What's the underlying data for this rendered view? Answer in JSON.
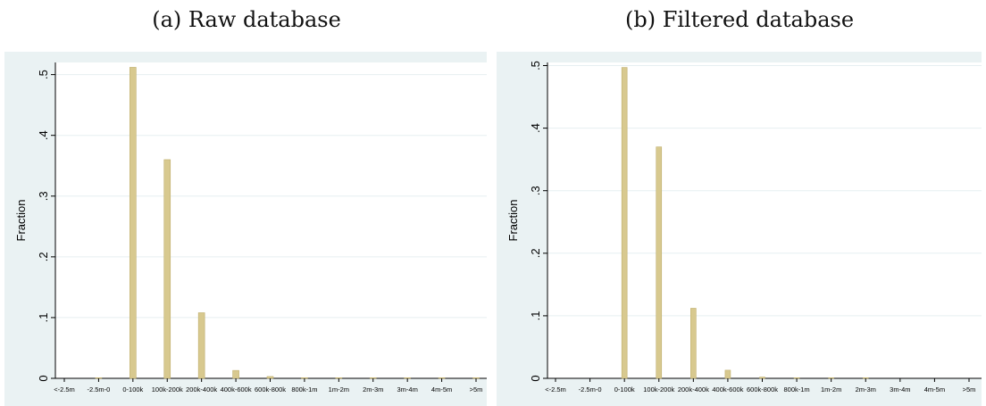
{
  "captions": {
    "a": "(a) Raw database",
    "b": "(b) Filtered database"
  },
  "colors": {
    "frame_bg": "#eaf2f3",
    "plot_bg": "#ffffff",
    "bar": "#d8c98f",
    "bar_edge": "#bfae6c",
    "grid": "#e6eff1"
  },
  "chart_data": [
    {
      "type": "bar",
      "title": "(a) Raw database",
      "xlabel": "",
      "ylabel": "Fraction",
      "ylim": [
        0,
        0.52
      ],
      "yticks": [
        0,
        0.1,
        0.2,
        0.3,
        0.4,
        0.5
      ],
      "ytick_labels": [
        "0",
        ".1",
        ".2",
        ".3",
        ".4",
        ".5"
      ],
      "grid": true,
      "categories": [
        "<-2.5m",
        "-2.5m-0",
        "0-100k",
        "100k-200k",
        "200k-400k",
        "400k-600k",
        "600k-800k",
        "800k-1m",
        "1m-2m",
        "2m-3m",
        "3m-4m",
        "4m-5m",
        ">5m"
      ],
      "values": [
        0.0,
        0.001,
        0.512,
        0.36,
        0.108,
        0.013,
        0.003,
        0.001,
        0.001,
        0.001,
        0.001,
        0.001,
        0.001
      ]
    },
    {
      "type": "bar",
      "title": "(b) Filtered database",
      "xlabel": "",
      "ylabel": "Fraction",
      "ylim": [
        0,
        0.505
      ],
      "yticks": [
        0,
        0.1,
        0.2,
        0.3,
        0.4,
        0.5
      ],
      "ytick_labels": [
        "0",
        ".1",
        ".2",
        ".3",
        ".4",
        ".5"
      ],
      "grid": true,
      "categories": [
        "<-2.5m",
        "-2.5m-0",
        "0-100k",
        "100k-200k",
        "200k-400k",
        "400k-600k",
        "600k-800k",
        "800k-1m",
        "1m-2m",
        "2m-3m",
        "3m-4m",
        "4m-5m",
        ">5m"
      ],
      "values": [
        0.0,
        0.0,
        0.497,
        0.37,
        0.112,
        0.013,
        0.002,
        0.001,
        0.001,
        0.001,
        0.0,
        0.0,
        0.0
      ]
    }
  ]
}
